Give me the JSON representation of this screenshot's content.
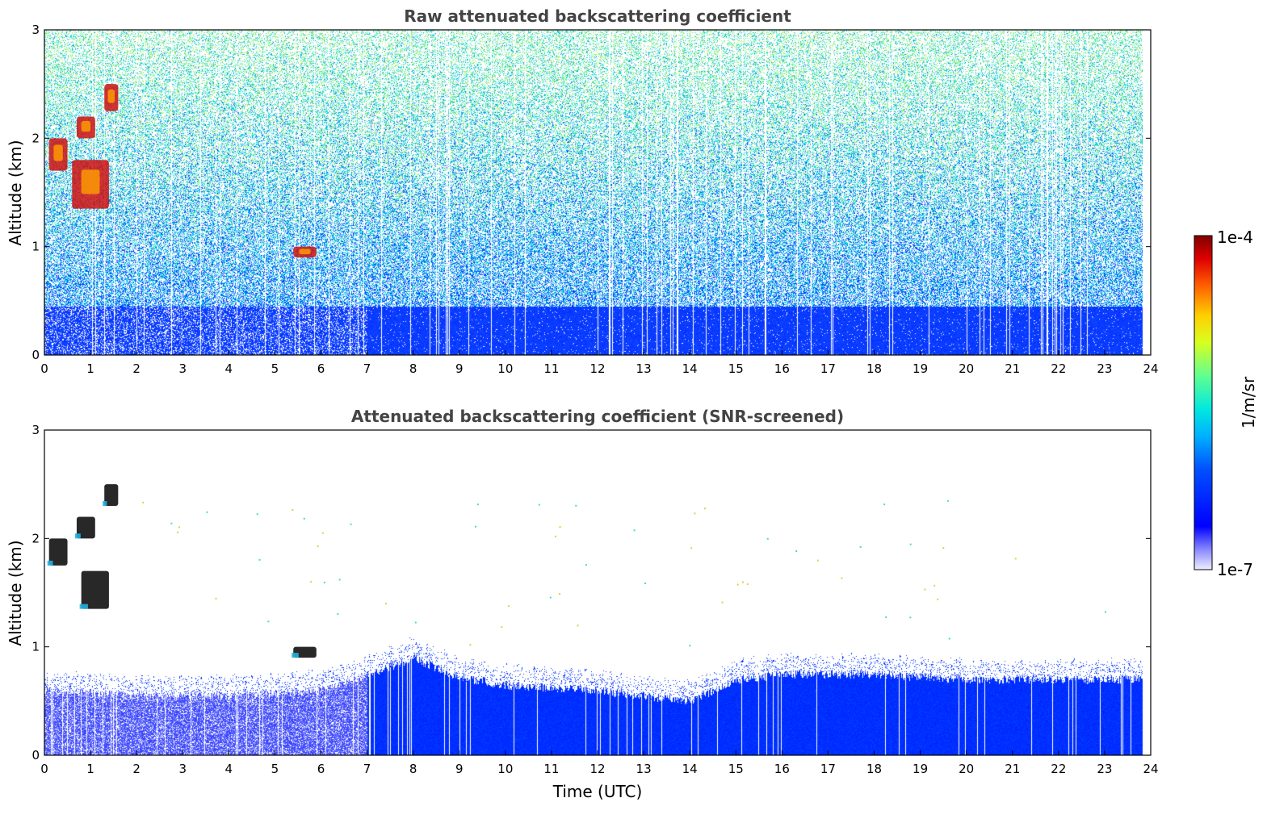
{
  "chart_data": [
    {
      "type": "heatmap",
      "title": "Raw attenuated backscattering coefficient",
      "xlabel": "",
      "ylabel": "Altitude (km)",
      "xlim": [
        0,
        24
      ],
      "ylim": [
        0,
        3
      ],
      "x_ticks": [
        "0",
        "1",
        "2",
        "3",
        "4",
        "5",
        "6",
        "7",
        "8",
        "9",
        "10",
        "11",
        "12",
        "13",
        "14",
        "15",
        "16",
        "17",
        "18",
        "19",
        "20",
        "21",
        "22",
        "23",
        "24"
      ],
      "y_ticks": [
        "0",
        "1",
        "2",
        "3"
      ],
      "grid": false,
      "noise_density": 0.85,
      "background_top_altitude_km": 0.45,
      "dense_start_time": 7.0,
      "clouds": [
        {
          "time_start": 0.1,
          "time_end": 0.5,
          "alt_start": 1.7,
          "alt_end": 2.0
        },
        {
          "time_start": 0.6,
          "time_end": 1.4,
          "alt_start": 1.35,
          "alt_end": 1.8
        },
        {
          "time_start": 0.7,
          "time_end": 1.1,
          "alt_start": 2.0,
          "alt_end": 2.2
        },
        {
          "time_start": 1.3,
          "time_end": 1.6,
          "alt_start": 2.25,
          "alt_end": 2.5
        },
        {
          "time_start": 5.4,
          "time_end": 5.9,
          "alt_start": 0.9,
          "alt_end": 1.0
        }
      ]
    },
    {
      "type": "heatmap",
      "title": "Attenuated backscattering coefficient (SNR-screened)",
      "xlabel": "Time (UTC)",
      "ylabel": "Altitude (km)",
      "xlim": [
        0,
        24
      ],
      "ylim": [
        0,
        3
      ],
      "x_ticks": [
        "0",
        "1",
        "2",
        "3",
        "4",
        "5",
        "6",
        "7",
        "8",
        "9",
        "10",
        "11",
        "12",
        "13",
        "14",
        "15",
        "16",
        "17",
        "18",
        "19",
        "20",
        "21",
        "22",
        "23",
        "24"
      ],
      "y_ticks": [
        "0",
        "1",
        "2",
        "3"
      ],
      "grid": false,
      "boundary_layer_top_km": [
        {
          "time": 0,
          "alt": 0.6
        },
        {
          "time": 2,
          "alt": 0.55
        },
        {
          "time": 4,
          "alt": 0.55
        },
        {
          "time": 6,
          "alt": 0.6
        },
        {
          "time": 7,
          "alt": 0.75
        },
        {
          "time": 8,
          "alt": 0.9
        },
        {
          "time": 9,
          "alt": 0.72
        },
        {
          "time": 10,
          "alt": 0.65
        },
        {
          "time": 12,
          "alt": 0.6
        },
        {
          "time": 13,
          "alt": 0.55
        },
        {
          "time": 14,
          "alt": 0.5
        },
        {
          "time": 15,
          "alt": 0.7
        },
        {
          "time": 16,
          "alt": 0.75
        },
        {
          "time": 18,
          "alt": 0.75
        },
        {
          "time": 20,
          "alt": 0.7
        },
        {
          "time": 22,
          "alt": 0.7
        },
        {
          "time": 24,
          "alt": 0.7
        }
      ],
      "clouds": [
        {
          "time_start": 0.1,
          "time_end": 0.5,
          "alt_start": 1.75,
          "alt_end": 2.0
        },
        {
          "time_start": 0.8,
          "time_end": 1.4,
          "alt_start": 1.35,
          "alt_end": 1.7
        },
        {
          "time_start": 0.7,
          "time_end": 1.1,
          "alt_start": 2.0,
          "alt_end": 2.2
        },
        {
          "time_start": 1.3,
          "time_end": 1.6,
          "alt_start": 2.3,
          "alt_end": 2.5
        },
        {
          "time_start": 5.4,
          "time_end": 5.9,
          "alt_start": 0.9,
          "alt_end": 1.0
        }
      ]
    }
  ],
  "colorbar": {
    "label": "1/m/sr",
    "max_label": "1e-4",
    "min_label": "1e-7",
    "scale": "log",
    "colormap": "jet"
  }
}
